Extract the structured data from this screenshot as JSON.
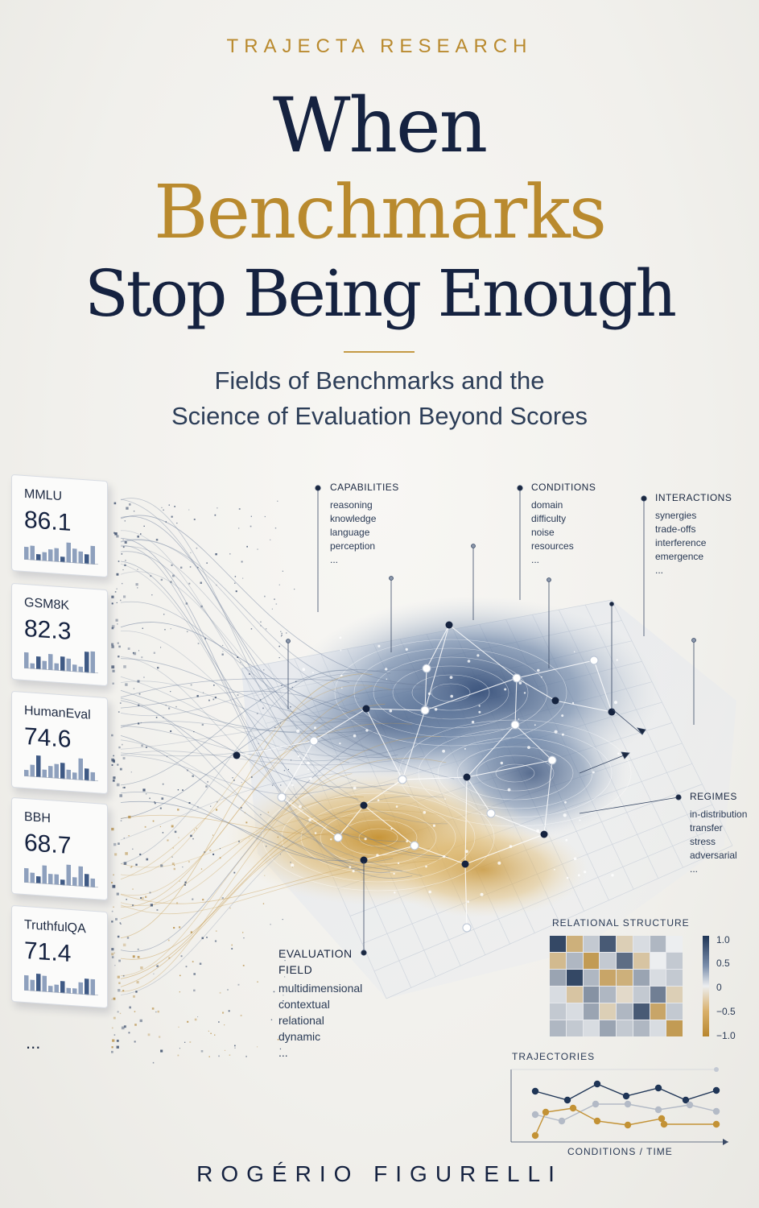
{
  "cover": {
    "publisher": "TRAJECTA RESEARCH",
    "title_line1": "When",
    "title_line2": "Benchmarks",
    "title_line3": "Stop Being Enough",
    "subtitle_line1": "Fields of Benchmarks and the",
    "subtitle_line2": "Science of Evaluation Beyond Scores",
    "author": "ROGÉRIO FIGURELLI",
    "colors": {
      "navy": "#152240",
      "gold": "#b98a2e",
      "background": "#f3f2ef"
    }
  },
  "benchmarks": [
    {
      "name": "MMLU",
      "score": "86.1"
    },
    {
      "name": "GSM8K",
      "score": "82.3"
    },
    {
      "name": "HumanEval",
      "score": "74.6"
    },
    {
      "name": "BBH",
      "score": "68.7"
    },
    {
      "name": "TruthfulQA",
      "score": "71.4"
    }
  ],
  "benchmarks_more": "...",
  "labels": {
    "capabilities": {
      "heading": "CAPABILITIES",
      "items": [
        "reasoning",
        "knowledge",
        "language",
        "perception",
        "..."
      ]
    },
    "conditions": {
      "heading": "CONDITIONS",
      "items": [
        "domain",
        "difficulty",
        "noise",
        "resources",
        "..."
      ]
    },
    "interactions": {
      "heading": "INTERACTIONS",
      "items": [
        "synergies",
        "trade-offs",
        "interference",
        "emergence",
        "..."
      ]
    },
    "regimes": {
      "heading": "REGIMES",
      "items": [
        "in-distribution",
        "transfer",
        "stress",
        "adversarial",
        "..."
      ]
    },
    "evaluation_field": {
      "heading_line1": "EVALUATION",
      "heading_line2": "FIELD",
      "items": [
        "multidimensional",
        "contextual",
        "relational",
        "dynamic",
        "..."
      ]
    }
  },
  "relational_structure": {
    "title": "RELATIONAL STRUCTURE",
    "scale_labels": [
      "1.0",
      "0.5",
      "0",
      "−0.5",
      "−1.0"
    ],
    "cells": [
      [
        0.9,
        -0.6,
        0.2,
        0.8,
        -0.3,
        0.1,
        0.3,
        0.0
      ],
      [
        -0.5,
        0.3,
        -0.8,
        0.2,
        0.7,
        -0.4,
        0.0,
        0.2
      ],
      [
        0.4,
        0.9,
        0.3,
        -0.7,
        -0.6,
        0.4,
        0.1,
        0.2
      ],
      [
        0.1,
        -0.4,
        0.5,
        0.3,
        -0.2,
        0.2,
        0.6,
        -0.3
      ],
      [
        0.2,
        0.1,
        0.4,
        -0.3,
        0.3,
        0.8,
        -0.7,
        0.2
      ],
      [
        0.3,
        0.2,
        0.1,
        0.4,
        0.2,
        0.3,
        0.1,
        -0.8
      ]
    ]
  },
  "trajectories": {
    "title": "TRAJECTORIES",
    "x_label": "CONDITIONS / TIME"
  }
}
